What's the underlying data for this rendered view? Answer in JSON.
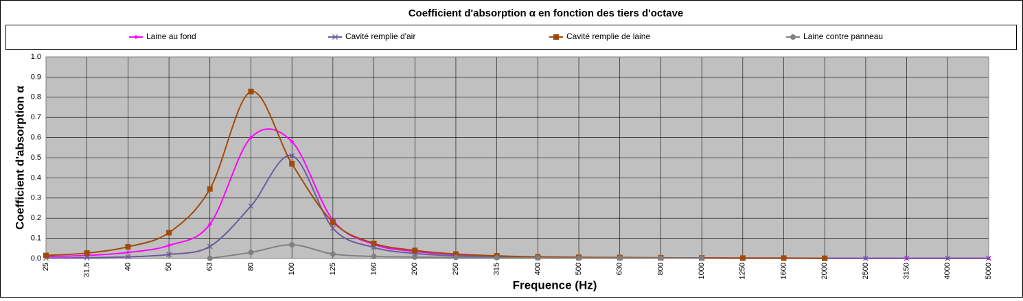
{
  "chart_data": {
    "type": "line",
    "smooth": true,
    "grid": true,
    "title": "Coefficient  d'absorption α en fonction  des tiers d'octave",
    "x_label": "Frequence  (Hz)",
    "y_label": "Coefficient  d'absorption  α",
    "categories": [
      "25",
      "31.5",
      "40",
      "50",
      "63",
      "80",
      "100",
      "125",
      "160",
      "200",
      "250",
      "315",
      "400",
      "500",
      "630",
      "800",
      "1000",
      "1250",
      "1600",
      "2000",
      "2500",
      "3150",
      "4000",
      "5000"
    ],
    "ylim": [
      0,
      1
    ],
    "yticks": [
      {
        "value": 0,
        "label": "0.0"
      },
      0.1,
      0.2,
      0.3,
      0.4,
      0.5,
      0.6,
      0.7,
      0.8,
      0.9,
      {
        "value": 1,
        "label": "1.0"
      }
    ],
    "series": [
      {
        "name": "Laine au fond",
        "color": "#FF00FF",
        "marker": "diamond",
        "values": [
          0.01,
          0.015,
          0.03,
          0.065,
          0.17,
          0.6,
          0.58,
          0.19,
          0.07,
          0.035,
          0.02,
          0.01,
          0.007,
          0.005,
          0.004,
          0.003,
          0.003,
          0.002,
          0.002,
          0.001,
          0.001,
          0.001,
          0.001,
          0.001
        ]
      },
      {
        "name": "Cavité remplie d'air",
        "color": "#6E5A9E",
        "marker": "x",
        "values": [
          0.002,
          0.004,
          0.008,
          0.02,
          0.06,
          0.26,
          0.51,
          0.15,
          0.055,
          0.025,
          0.013,
          0.008,
          0.005,
          0.004,
          0.003,
          0.002,
          0.002,
          0.001,
          0.001,
          0.001,
          0.001,
          0.001,
          0.001,
          0.001
        ]
      },
      {
        "name": "Cavité remplie de laine",
        "color": "#A04A0A",
        "marker": "square",
        "values": [
          0.015,
          0.027,
          0.058,
          0.128,
          0.345,
          0.828,
          0.47,
          0.18,
          0.075,
          0.04,
          0.022,
          0.013,
          0.008,
          0.006,
          0.005,
          0.004,
          0.003,
          0.002,
          0.002,
          0.001,
          null,
          null,
          null,
          null
        ]
      },
      {
        "name": "Laine contre panneau",
        "color": "#808080",
        "marker": "circle",
        "values": [
          null,
          null,
          null,
          null,
          0.001,
          0.03,
          0.068,
          0.022,
          0.01,
          0.007,
          0.005,
          0.004,
          0.003,
          0.002,
          0.002,
          0.002,
          0.002,
          null,
          null,
          null,
          null,
          null,
          null,
          null
        ]
      }
    ]
  }
}
